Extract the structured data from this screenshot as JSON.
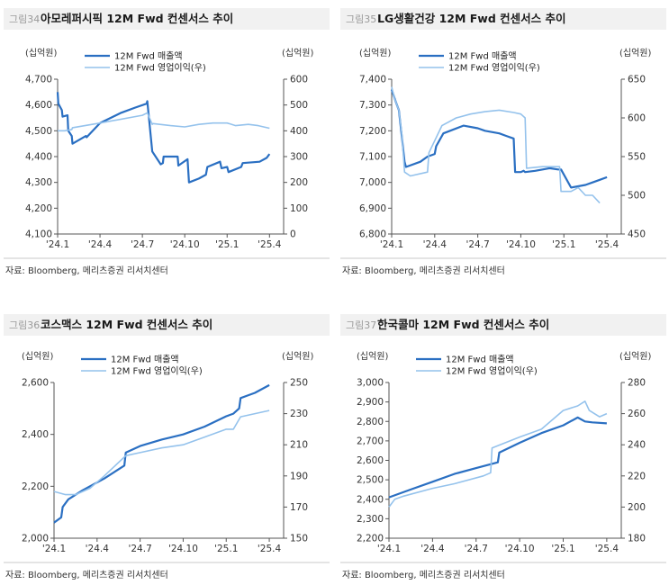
{
  "chart_data": [
    {
      "type": "line",
      "figure_label": "그림34",
      "title": "아모레퍼시픽 12M Fwd 컨센서스 추이",
      "y_unit_left": "(십억원)",
      "y_unit_right": "(십억원)",
      "ylim_left": [
        4100,
        4700
      ],
      "yticks_left": [
        "4,700",
        "4,600",
        "4,500",
        "4,400",
        "4,300",
        "4,200",
        "4,100"
      ],
      "ylim_right": [
        0,
        600
      ],
      "yticks_right": [
        "600",
        "500",
        "400",
        "300",
        "200",
        "100",
        "0"
      ],
      "xlim": [
        0,
        16
      ],
      "xtick_labels": [
        "'24.1",
        "'24.4",
        "'24.7",
        "'24.10",
        "'25.1",
        "'25.4"
      ],
      "xtick_positions": [
        0,
        3,
        6,
        9,
        12,
        15
      ],
      "series": [
        {
          "name": "12M Fwd 매출액",
          "axis": "left",
          "color": "#2a6fc2",
          "x": [
            0,
            0.05,
            0.3,
            0.35,
            0.7,
            0.75,
            1.0,
            1.05,
            2.0,
            2.05,
            3.0,
            4.5,
            5.5,
            6.3,
            6.35,
            6.7,
            7.3,
            7.45,
            7.5,
            8.5,
            8.55,
            9.2,
            9.3,
            10.0,
            10.5,
            10.6,
            11.5,
            11.6,
            12.0,
            12.1,
            13.0,
            13.1,
            14.3,
            14.8,
            15.0
          ],
          "y": [
            4650,
            4605,
            4580,
            4555,
            4560,
            4500,
            4480,
            4450,
            4480,
            4475,
            4530,
            4570,
            4590,
            4605,
            4615,
            4420,
            4370,
            4375,
            4400,
            4400,
            4365,
            4390,
            4300,
            4315,
            4330,
            4360,
            4380,
            4355,
            4360,
            4340,
            4360,
            4375,
            4380,
            4395,
            4410
          ]
        },
        {
          "name": "12M Fwd 영업이익(우)",
          "axis": "right",
          "color": "#94c2ec",
          "x": [
            0,
            0.5,
            1.0,
            1.05,
            3.0,
            6.0,
            6.3,
            6.35,
            6.7,
            6.75,
            8.0,
            9.0,
            10.0,
            11.0,
            12.0,
            12.6,
            13.5,
            14.2,
            15.0
          ],
          "y": [
            400,
            400,
            405,
            412,
            430,
            460,
            468,
            470,
            425,
            428,
            420,
            415,
            425,
            430,
            430,
            420,
            425,
            420,
            410
          ]
        }
      ],
      "source": "자료: Bloomberg, 메리츠증권 리서치센터"
    },
    {
      "type": "line",
      "figure_label": "그림35",
      "title": "LG생활건강 12M Fwd 컨센서스 추이",
      "y_unit_left": "(십억원)",
      "y_unit_right": "(십억원)",
      "ylim_left": [
        6800,
        7400
      ],
      "yticks_left": [
        "7,400",
        "7,300",
        "7,200",
        "7,100",
        "7,000",
        "6,900",
        "6,800"
      ],
      "ylim_right": [
        450,
        650
      ],
      "yticks_right": [
        "650",
        "600",
        "550",
        "500",
        "450"
      ],
      "xlim": [
        0,
        16
      ],
      "xtick_labels": [
        "'24.1",
        "'24.4",
        "'24.7",
        "'24.10",
        "'25.1",
        "'25.4"
      ],
      "xtick_positions": [
        0,
        3,
        6,
        9,
        12,
        15
      ],
      "series": [
        {
          "name": "12M Fwd 매출액",
          "axis": "left",
          "color": "#2a6fc2",
          "x": [
            0,
            0.3,
            0.5,
            0.7,
            0.9,
            1.0,
            2.0,
            2.5,
            3.0,
            3.1,
            3.6,
            5.0,
            6.0,
            6.5,
            7.5,
            8.0,
            8.5,
            8.6,
            9.0,
            9.2,
            9.3,
            10.0,
            11.0,
            11.6,
            11.8,
            12.5,
            13.5,
            14.0,
            14.5,
            15.0
          ],
          "y": [
            7360,
            7310,
            7280,
            7180,
            7080,
            7060,
            7080,
            7100,
            7110,
            7140,
            7190,
            7220,
            7210,
            7200,
            7190,
            7180,
            7170,
            7040,
            7040,
            7045,
            7040,
            7045,
            7055,
            7050,
            7050,
            6980,
            6990,
            7000,
            7010,
            7020
          ]
        },
        {
          "name": "12M Fwd 영업이익(우)",
          "axis": "right",
          "color": "#94c2ec",
          "x": [
            0,
            0.2,
            0.5,
            0.7,
            0.9,
            1.3,
            2.5,
            2.6,
            3.5,
            4.5,
            5.5,
            6.5,
            7.5,
            8.5,
            9.0,
            9.3,
            9.4,
            10.5,
            11.7,
            11.8,
            12.5,
            13.0,
            13.5,
            14.0,
            14.5
          ],
          "y": [
            640,
            625,
            610,
            580,
            530,
            525,
            530,
            555,
            590,
            600,
            605,
            608,
            610,
            607,
            605,
            600,
            535,
            537,
            537,
            505,
            505,
            510,
            500,
            500,
            490
          ]
        }
      ],
      "source": "자료: Bloomberg, 메리츠증권 리서치센터"
    },
    {
      "type": "line",
      "figure_label": "그림36",
      "title": "코스맥스 12M Fwd 컨센서스 추이",
      "y_unit_left": "(십억원)",
      "y_unit_right": "(십억원)",
      "ylim_left": [
        2000,
        2600
      ],
      "yticks_left": [
        "2,600",
        "2,400",
        "2,200",
        "2,000"
      ],
      "ylim_right": [
        150,
        250
      ],
      "yticks_right": [
        "250",
        "230",
        "210",
        "190",
        "170",
        "150"
      ],
      "xlim": [
        0,
        16
      ],
      "xtick_labels": [
        "'24.1",
        "'24.4",
        "'24.7",
        "'24.10",
        "'25.1",
        "'25.4"
      ],
      "xtick_positions": [
        0,
        3,
        6,
        9,
        12,
        15
      ],
      "series": [
        {
          "name": "12M Fwd 매출액",
          "axis": "left",
          "color": "#2a6fc2",
          "x": [
            0,
            0.5,
            0.6,
            1.0,
            2.0,
            3.5,
            4.9,
            5.0,
            6.0,
            7.5,
            9.0,
            10.5,
            12.0,
            12.5,
            12.9,
            13.0,
            13.5,
            14.0,
            15.0
          ],
          "y": [
            2060,
            2080,
            2120,
            2150,
            2185,
            2230,
            2280,
            2330,
            2355,
            2380,
            2400,
            2430,
            2470,
            2480,
            2500,
            2540,
            2550,
            2560,
            2590
          ]
        },
        {
          "name": "12M Fwd 영업이익(우)",
          "axis": "right",
          "color": "#94c2ec",
          "x": [
            0,
            0.8,
            1.5,
            2.5,
            3.5,
            5.0,
            6.0,
            7.5,
            9.0,
            10.5,
            12.0,
            12.5,
            13.0,
            14.0,
            15.0
          ],
          "y": [
            180,
            178,
            178,
            182,
            190,
            203,
            205,
            208,
            210,
            215,
            220,
            220,
            228,
            230,
            232
          ]
        }
      ],
      "source": "자료: Bloomberg, 메리츠증권 리서치센터"
    },
    {
      "type": "line",
      "figure_label": "그림37",
      "title": "한국콜마 12M Fwd 컨센서스 추이",
      "y_unit_left": "(십억원)",
      "y_unit_right": "(십억원)",
      "ylim_left": [
        2200,
        3000
      ],
      "yticks_left": [
        "3,000",
        "2,900",
        "2,800",
        "2,700",
        "2,600",
        "2,500",
        "2,400",
        "2,300",
        "2,200"
      ],
      "ylim_right": [
        180,
        280
      ],
      "yticks_right": [
        "280",
        "260",
        "240",
        "220",
        "200",
        "180"
      ],
      "xlim": [
        0,
        16
      ],
      "xtick_labels": [
        "'24.1",
        "'24.4",
        "'24.7",
        "'24.10",
        "'25.1",
        "'25.4"
      ],
      "xtick_positions": [
        0,
        3,
        6,
        9,
        12,
        15
      ],
      "series": [
        {
          "name": "12M Fwd 매출액",
          "axis": "left",
          "color": "#2a6fc2",
          "x": [
            0,
            1.5,
            3.0,
            4.5,
            6.0,
            7.5,
            7.6,
            9.0,
            10.5,
            12.0,
            13.0,
            13.5,
            14.0,
            15.0
          ],
          "y": [
            2410,
            2450,
            2490,
            2530,
            2560,
            2590,
            2640,
            2690,
            2740,
            2780,
            2820,
            2800,
            2795,
            2790
          ]
        },
        {
          "name": "12M Fwd 영업이익(우)",
          "axis": "right",
          "color": "#94c2ec",
          "x": [
            0,
            0.4,
            1.0,
            3.0,
            4.5,
            6.5,
            7.0,
            7.1,
            9.0,
            10.5,
            12.0,
            13.0,
            13.5,
            13.8,
            14.5,
            15.0
          ],
          "y": [
            200,
            205,
            207,
            212,
            215,
            220,
            222,
            238,
            245,
            250,
            262,
            265,
            268,
            262,
            258,
            260
          ]
        }
      ],
      "source": "자료: Bloomberg, 메리츠증권 리서치센터"
    }
  ]
}
